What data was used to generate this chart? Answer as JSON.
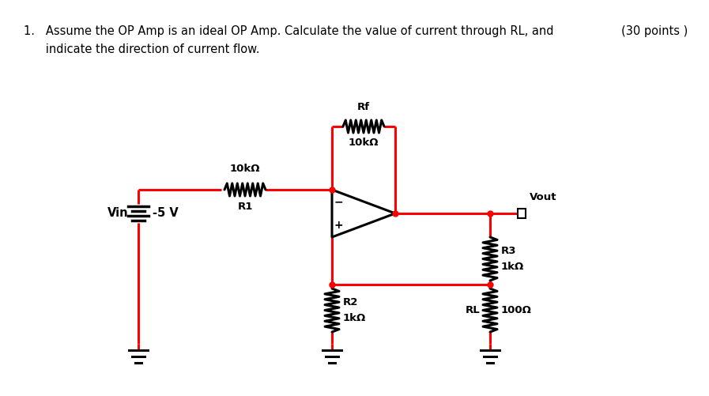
{
  "title_line1": "1.   Assume the OP Amp is an ideal OP Amp. Calculate the value of current through RL, and",
  "title_line2": "      indicate the direction of current flow.",
  "points_text": "(30 points )",
  "circuit_color": "#ff0000",
  "black": "#000000",
  "white": "#ffffff",
  "bg_color": "#ffffff",
  "Vin_label": "Vin",
  "Vin_value": "-5 V",
  "R1_label": "R1",
  "R1_value": "10kΩ",
  "Rf_label": "Rf",
  "Rf_value": "10kΩ",
  "R2_label": "R2",
  "R2_value": "1kΩ",
  "R3_label": "R3",
  "R3_value": "1kΩ",
  "RL_label": "RL",
  "RL_value": "100Ω",
  "Vout_label": "Vout",
  "figw": 8.97,
  "figh": 5.01,
  "dpi": 100
}
